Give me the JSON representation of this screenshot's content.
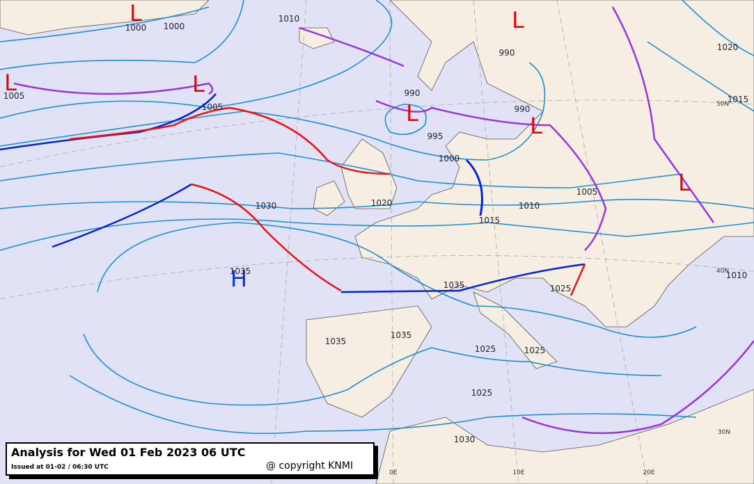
{
  "caption": {
    "title": "Analysis for Wed 01 Feb 2023 06 UTC",
    "issued": "Issued at 01-02 / 06:30 UTC",
    "copyright": "@ copyright KNMI"
  },
  "pressure_centers": [
    "L",
    "L",
    "L",
    "L",
    "L",
    "L",
    "L",
    "H"
  ],
  "isobar_labels": [
    "1000",
    "1000",
    "1010",
    "990",
    "1005",
    "1005",
    "990",
    "990",
    "995",
    "1000",
    "1020",
    "1030",
    "1005",
    "1010",
    "1015",
    "1035",
    "1035",
    "1025",
    "1035",
    "1035",
    "1025",
    "1025",
    "1025",
    "1030",
    "1020",
    "1015",
    "1010"
  ],
  "graticule_labels": [
    "0E",
    "10E",
    "20E",
    "30N",
    "40N",
    "50N"
  ]
}
